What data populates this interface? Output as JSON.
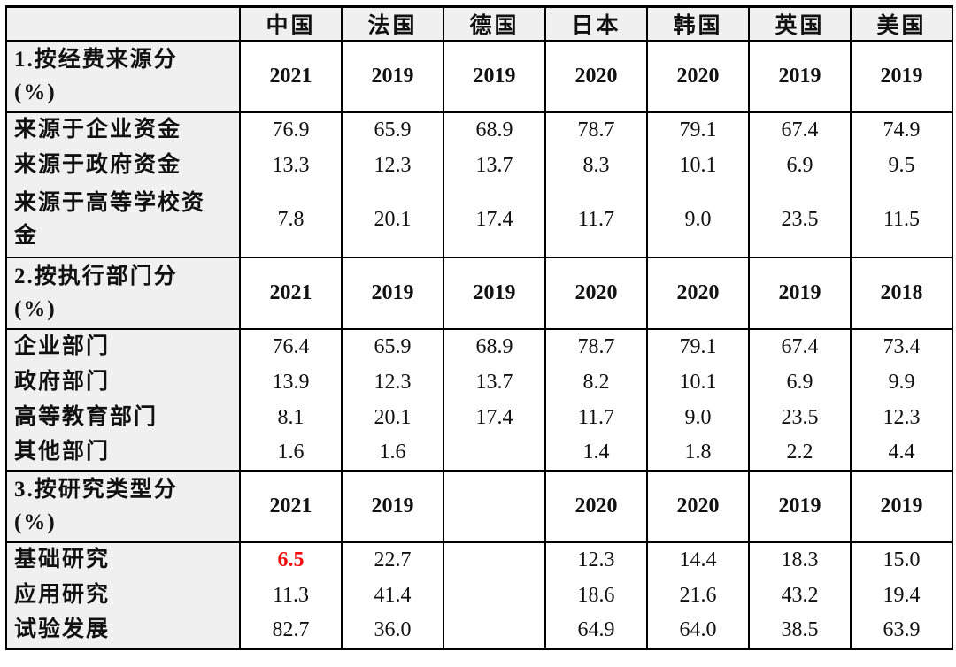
{
  "colors": {
    "highlight_red": "#f40b0b",
    "header_bg": "#f0f0f0",
    "border": "#000000"
  },
  "table": {
    "corner_label": "",
    "countries": [
      "中国",
      "法国",
      "德国",
      "日本",
      "韩国",
      "英国",
      "美国"
    ],
    "sections": [
      {
        "label": "1.按经费来源分\n(%)",
        "years": [
          "2021",
          "2019",
          "2019",
          "2020",
          "2020",
          "2019",
          "2019"
        ],
        "rows": [
          {
            "label": "来源于企业资金",
            "values": [
              "76.9",
              "65.9",
              "68.9",
              "78.7",
              "79.1",
              "67.4",
              "74.9"
            ]
          },
          {
            "label": "来源于政府资金",
            "values": [
              "13.3",
              "12.3",
              "13.7",
              "8.3",
              "10.1",
              "6.9",
              "9.5"
            ]
          },
          {
            "label": "来源于高等学校资\n金",
            "values": [
              "7.8",
              "20.1",
              "17.4",
              "11.7",
              "9.0",
              "23.5",
              "11.5"
            ]
          }
        ]
      },
      {
        "label": "2.按执行部门分\n(%)",
        "years": [
          "2021",
          "2019",
          "2019",
          "2020",
          "2020",
          "2019",
          "2018"
        ],
        "rows": [
          {
            "label": "企业部门",
            "values": [
              "76.4",
              "65.9",
              "68.9",
              "78.7",
              "79.1",
              "67.4",
              "73.4"
            ]
          },
          {
            "label": "政府部门",
            "values": [
              "13.9",
              "12.3",
              "13.7",
              "8.2",
              "10.1",
              "6.9",
              "9.9"
            ]
          },
          {
            "label": "高等教育部门",
            "values": [
              "8.1",
              "20.1",
              "17.4",
              "11.7",
              "9.0",
              "23.5",
              "12.3"
            ]
          },
          {
            "label": "其他部门",
            "values": [
              "1.6",
              "1.6",
              "",
              "1.4",
              "1.8",
              "2.2",
              "4.4"
            ]
          }
        ]
      },
      {
        "label": "3.按研究类型分\n(%)",
        "years": [
          "2021",
          "2019",
          "",
          "2020",
          "2020",
          "2019",
          "2019"
        ],
        "rows": [
          {
            "label": "基础研究",
            "values": [
              "6.5",
              "22.7",
              "",
              "12.3",
              "14.4",
              "18.3",
              "15.0"
            ],
            "highlight_cols": [
              0
            ]
          },
          {
            "label": "应用研究",
            "values": [
              "11.3",
              "41.4",
              "",
              "18.6",
              "21.6",
              "43.2",
              "19.4"
            ]
          },
          {
            "label": "试验发展",
            "values": [
              "82.7",
              "36.0",
              "",
              "64.9",
              "64.0",
              "38.5",
              "63.9"
            ]
          }
        ]
      }
    ]
  }
}
